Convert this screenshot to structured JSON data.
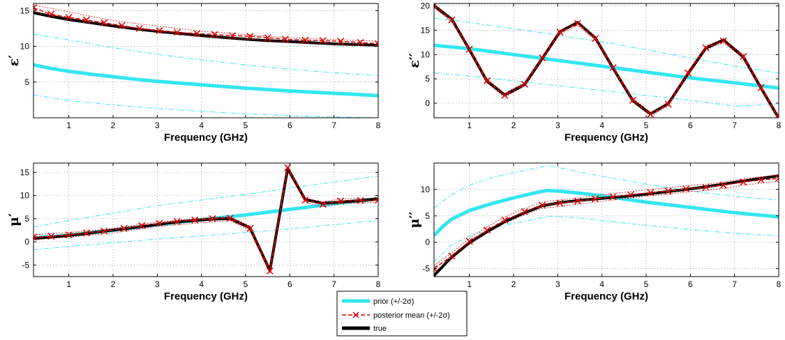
{
  "chart_data": [
    {
      "type": "line",
      "ylabel": "ε′",
      "xlabel": "Frequency (GHz)",
      "xlim": [
        0.2,
        8
      ],
      "ylim": [
        0,
        16
      ],
      "xticks": [
        1,
        2,
        3,
        4,
        5,
        6,
        7,
        8
      ],
      "yticks": [
        5,
        10,
        15
      ],
      "series": [
        {
          "name": "prior",
          "x": [
            0.2,
            0.6,
            1.0,
            1.5,
            2.0,
            2.5,
            3.0,
            3.5,
            4.0,
            4.5,
            5.0,
            5.5,
            6.0,
            6.5,
            7.0,
            7.5,
            8.0
          ],
          "y": [
            7.4,
            6.9,
            6.5,
            6.1,
            5.75,
            5.4,
            5.1,
            4.85,
            4.6,
            4.38,
            4.15,
            3.95,
            3.75,
            3.58,
            3.42,
            3.27,
            3.1
          ]
        },
        {
          "name": "prior +2σ",
          "x": [
            0.2,
            1.0,
            2.0,
            3.0,
            4.0,
            5.0,
            6.0,
            7.0,
            8.0
          ],
          "y": [
            11.7,
            10.9,
            9.8,
            8.9,
            8.1,
            7.4,
            6.8,
            6.3,
            5.9
          ]
        },
        {
          "name": "prior -2σ",
          "x": [
            0.2,
            1.0,
            2.0,
            3.0,
            4.0,
            5.0,
            6.0,
            7.0,
            8.0
          ],
          "y": [
            3.2,
            2.4,
            1.8,
            1.3,
            0.9,
            0.55,
            0.3,
            0.1,
            0.0
          ]
        },
        {
          "name": "posterior mean",
          "x": [
            0.2,
            0.6,
            1.0,
            1.4,
            1.8,
            2.2,
            2.6,
            3.05,
            3.45,
            3.9,
            4.3,
            4.7,
            5.1,
            5.5,
            5.9,
            6.35,
            6.75,
            7.15,
            7.6,
            8.0
          ],
          "y": [
            15.4,
            14.5,
            14.05,
            13.7,
            13.3,
            12.9,
            12.5,
            12.2,
            11.95,
            11.8,
            11.65,
            11.5,
            11.4,
            11.2,
            11.0,
            10.85,
            10.8,
            10.7,
            10.55,
            10.35
          ]
        },
        {
          "name": "posterior +2σ",
          "x": [
            0.2,
            2.0,
            4.0,
            6.0,
            8.0
          ],
          "y": [
            15.8,
            13.6,
            12.1,
            11.2,
            10.7
          ]
        },
        {
          "name": "posterior -2σ",
          "x": [
            0.2,
            2.0,
            4.0,
            6.0,
            8.0
          ],
          "y": [
            14.9,
            12.9,
            11.4,
            10.6,
            10.1
          ]
        },
        {
          "name": "true",
          "x": [
            0.2,
            0.6,
            1.0,
            1.5,
            2.0,
            2.5,
            3.0,
            3.5,
            4.0,
            4.5,
            5.0,
            5.5,
            6.0,
            6.5,
            7.0,
            7.5,
            8.0
          ],
          "y": [
            14.7,
            14.2,
            13.75,
            13.3,
            12.85,
            12.45,
            12.1,
            11.8,
            11.5,
            11.25,
            11.0,
            10.8,
            10.65,
            10.5,
            10.35,
            10.25,
            10.15
          ]
        }
      ]
    },
    {
      "type": "line",
      "ylabel": "ε′′",
      "xlabel": "Frequency (GHz)",
      "xlim": [
        0.2,
        8
      ],
      "ylim": [
        -3,
        20.5
      ],
      "xticks": [
        1,
        2,
        3,
        4,
        5,
        6,
        7,
        8
      ],
      "yticks": [
        0,
        5,
        10,
        15,
        20
      ],
      "series": [
        {
          "name": "prior",
          "x": [
            0.2,
            1.0,
            2.0,
            3.0,
            4.0,
            5.0,
            6.0,
            7.0,
            8.0
          ],
          "y": [
            11.9,
            11.2,
            10.0,
            8.8,
            7.6,
            6.4,
            5.2,
            4.2,
            3.1
          ]
        },
        {
          "name": "prior +2σ",
          "x": [
            0.2,
            1.0,
            2.0,
            3.0,
            4.0,
            5.0,
            6.0,
            7.0,
            8.0
          ],
          "y": [
            17.5,
            16.6,
            15.3,
            14.0,
            12.6,
            11.0,
            9.3,
            7.6,
            6.2
          ]
        },
        {
          "name": "prior -2σ",
          "x": [
            0.2,
            1.0,
            2.0,
            3.0,
            4.0,
            5.0,
            6.0,
            7.0,
            8.0
          ],
          "y": [
            6.2,
            5.6,
            4.6,
            3.6,
            2.6,
            1.6,
            0.6,
            -0.6,
            -0.2
          ]
        },
        {
          "name": "posterior mean",
          "x": [
            0.2,
            0.6,
            1.0,
            1.4,
            1.8,
            2.25,
            2.65,
            3.05,
            3.45,
            3.85,
            4.25,
            4.7,
            5.1,
            5.5,
            5.95,
            6.35,
            6.75,
            7.2,
            7.6,
            8.0
          ],
          "y": [
            20.1,
            17.1,
            11.1,
            4.6,
            1.6,
            3.9,
            9.3,
            14.6,
            16.4,
            13.3,
            7.3,
            0.6,
            -2.3,
            -0.2,
            6.2,
            11.4,
            12.8,
            9.6,
            3.2,
            -3.0
          ]
        },
        {
          "name": "posterior +2σ",
          "x": [
            0.2,
            0.6,
            1.0,
            1.4,
            1.8,
            2.25,
            2.65,
            3.05,
            3.45,
            3.85,
            4.25,
            4.7,
            5.1,
            5.5,
            5.95,
            6.35,
            6.75,
            7.2,
            7.6,
            8.0
          ],
          "y": [
            20.5,
            17.5,
            11.5,
            5.0,
            2.0,
            4.3,
            9.7,
            15.0,
            16.8,
            13.7,
            7.7,
            1.0,
            -1.9,
            0.2,
            6.6,
            11.8,
            13.2,
            10.0,
            3.6,
            -2.6
          ]
        },
        {
          "name": "posterior -2σ",
          "x": [
            0.2,
            0.6,
            1.0,
            1.4,
            1.8,
            2.25,
            2.65,
            3.05,
            3.45,
            3.85,
            4.25,
            4.7,
            5.1,
            5.5,
            5.95,
            6.35,
            6.75,
            7.2,
            7.6,
            8.0
          ],
          "y": [
            19.7,
            16.7,
            10.7,
            4.2,
            1.2,
            3.5,
            8.9,
            14.2,
            16.0,
            12.9,
            6.9,
            0.2,
            -2.7,
            -0.6,
            5.8,
            11.0,
            12.4,
            9.2,
            2.8,
            -3.4
          ]
        },
        {
          "name": "true",
          "x": [
            0.2,
            0.6,
            1.0,
            1.4,
            1.8,
            2.25,
            2.65,
            3.05,
            3.45,
            3.85,
            4.25,
            4.7,
            5.1,
            5.5,
            5.95,
            6.35,
            6.75,
            7.2,
            7.6,
            8.0
          ],
          "y": [
            20.0,
            17.3,
            11.0,
            4.5,
            1.7,
            3.8,
            9.2,
            14.7,
            16.6,
            13.4,
            7.2,
            0.5,
            -2.2,
            -0.1,
            6.1,
            11.3,
            13.0,
            9.5,
            3.1,
            -3.1
          ]
        }
      ]
    },
    {
      "type": "line",
      "ylabel": "μ′",
      "xlabel": "Frequency (GHz)",
      "xlim": [
        0.2,
        8
      ],
      "ylim": [
        -7.5,
        17
      ],
      "xticks": [
        1,
        2,
        3,
        4,
        5,
        6,
        7,
        8
      ],
      "yticks": [
        -5,
        0,
        5,
        10,
        15
      ],
      "series": [
        {
          "name": "prior",
          "x": [
            0.2,
            1.0,
            2.0,
            3.0,
            4.0,
            4.5,
            5.0,
            6.0,
            7.0,
            8.0
          ],
          "y": [
            0.8,
            1.4,
            2.5,
            3.7,
            4.8,
            5.3,
            5.8,
            7.0,
            8.2,
            9.3
          ]
        },
        {
          "name": "prior +2σ",
          "x": [
            0.2,
            1.0,
            2.0,
            3.0,
            4.0,
            5.0,
            6.0,
            7.0,
            8.0
          ],
          "y": [
            3.2,
            4.6,
            6.2,
            7.8,
            9.0,
            10.2,
            11.6,
            12.9,
            14.2
          ]
        },
        {
          "name": "prior -2σ",
          "x": [
            0.2,
            1.0,
            2.0,
            3.0,
            4.0,
            5.0,
            6.0,
            7.0,
            8.0
          ],
          "y": [
            -1.7,
            -1.0,
            -0.2,
            0.6,
            1.3,
            2.0,
            2.8,
            3.7,
            4.6
          ]
        },
        {
          "name": "posterior mean",
          "x": [
            0.2,
            0.6,
            1.0,
            1.4,
            1.8,
            2.25,
            2.65,
            3.05,
            3.45,
            3.85,
            4.25,
            4.65,
            5.1,
            5.55,
            5.95,
            6.35,
            6.75,
            7.15,
            7.6,
            8.0
          ],
          "y": [
            1.0,
            1.2,
            1.5,
            1.9,
            2.3,
            2.9,
            3.5,
            4.0,
            4.4,
            4.7,
            5.0,
            5.1,
            2.9,
            -6.3,
            16.0,
            9.0,
            8.1,
            8.8,
            8.9,
            9.0
          ]
        },
        {
          "name": "posterior +2σ",
          "x": [
            0.2,
            1.0,
            2.0,
            3.0,
            4.0,
            4.65,
            5.1,
            5.55,
            5.95,
            6.35,
            6.75,
            7.15,
            7.6,
            8.0
          ],
          "y": [
            1.5,
            2.0,
            2.9,
            4.3,
            5.1,
            5.5,
            3.4,
            -5.8,
            16.5,
            9.5,
            8.6,
            9.3,
            9.4,
            9.5
          ]
        },
        {
          "name": "posterior -2σ",
          "x": [
            0.2,
            1.0,
            2.0,
            3.0,
            4.0,
            4.65,
            5.1,
            5.55,
            5.95,
            6.35,
            6.75,
            7.15,
            7.6,
            8.0
          ],
          "y": [
            0.5,
            1.0,
            1.9,
            3.3,
            4.1,
            4.6,
            2.4,
            -6.8,
            15.5,
            8.5,
            7.6,
            8.3,
            8.4,
            8.5
          ]
        },
        {
          "name": "true",
          "x": [
            0.2,
            0.6,
            1.0,
            1.4,
            1.8,
            2.25,
            2.65,
            3.05,
            3.45,
            3.85,
            4.25,
            4.65,
            5.1,
            5.55,
            5.95,
            6.35,
            6.75,
            7.15,
            7.6,
            8.0
          ],
          "y": [
            0.7,
            1.0,
            1.4,
            1.8,
            2.3,
            2.8,
            3.3,
            3.8,
            4.3,
            4.6,
            4.9,
            5.0,
            3.0,
            -6.2,
            15.8,
            9.1,
            8.3,
            8.6,
            8.9,
            9.2
          ]
        }
      ]
    },
    {
      "type": "line",
      "ylabel": "μ′′",
      "xlabel": "Frequency (GHz)",
      "xlim": [
        0.2,
        8
      ],
      "ylim": [
        -6.5,
        15
      ],
      "xticks": [
        1,
        2,
        3,
        4,
        5,
        6,
        7,
        8
      ],
      "yticks": [
        -5,
        0,
        5,
        10
      ],
      "series": [
        {
          "name": "prior",
          "x": [
            0.2,
            0.4,
            0.6,
            1.0,
            1.5,
            2.0,
            2.4,
            2.75,
            3.0,
            3.5,
            4.0,
            4.5,
            5.0,
            5.5,
            6.0,
            6.5,
            7.0,
            7.5,
            8.0
          ],
          "y": [
            1.3,
            3.0,
            4.4,
            6.0,
            7.3,
            8.4,
            9.2,
            9.8,
            9.7,
            9.3,
            8.8,
            8.2,
            7.6,
            7.1,
            6.6,
            6.1,
            5.6,
            5.2,
            4.8
          ]
        },
        {
          "name": "prior +2σ",
          "x": [
            0.2,
            0.6,
            1.0,
            1.5,
            2.0,
            2.5,
            2.75,
            3.0,
            3.5,
            4.0,
            5.0,
            6.0,
            7.0,
            8.0
          ],
          "y": [
            6.5,
            9.0,
            10.8,
            12.2,
            13.2,
            14.0,
            14.5,
            14.2,
            13.3,
            12.5,
            11.0,
            9.7,
            8.7,
            8.0
          ]
        },
        {
          "name": "prior -2σ",
          "x": [
            0.2,
            0.6,
            1.0,
            1.5,
            2.0,
            2.5,
            2.75,
            3.0,
            3.5,
            4.0,
            5.0,
            6.0,
            7.0,
            8.0
          ],
          "y": [
            -3.7,
            -0.5,
            1.2,
            2.6,
            3.6,
            4.4,
            4.9,
            4.9,
            4.6,
            4.1,
            3.2,
            2.4,
            1.7,
            1.2
          ]
        },
        {
          "name": "posterior mean",
          "x": [
            0.2,
            0.6,
            1.0,
            1.4,
            1.8,
            2.25,
            2.65,
            3.05,
            3.45,
            3.85,
            4.25,
            4.65,
            5.1,
            5.5,
            5.9,
            6.35,
            6.75,
            7.2,
            7.6,
            8.0
          ],
          "y": [
            -5.0,
            -2.6,
            0.2,
            2.3,
            4.2,
            5.8,
            7.0,
            7.4,
            7.8,
            8.2,
            8.6,
            9.0,
            9.4,
            9.7,
            10.1,
            10.4,
            10.8,
            11.4,
            11.8,
            12.1
          ]
        },
        {
          "name": "posterior +2σ",
          "x": [
            0.2,
            0.6,
            1.0,
            1.4,
            1.8,
            2.25,
            2.65,
            3.05,
            3.45,
            3.85,
            4.25,
            4.65,
            5.1,
            5.5,
            5.9,
            6.35,
            6.75,
            7.2,
            7.6,
            8.0
          ],
          "y": [
            -4.4,
            -2.0,
            0.8,
            2.9,
            4.8,
            6.4,
            7.6,
            8.0,
            8.4,
            8.8,
            9.2,
            9.6,
            10.0,
            10.3,
            10.7,
            11.0,
            11.4,
            12.0,
            12.4,
            12.7
          ]
        },
        {
          "name": "posterior -2σ",
          "x": [
            0.2,
            0.6,
            1.0,
            1.4,
            1.8,
            2.25,
            2.65,
            3.05,
            3.45,
            3.85,
            4.25,
            4.65,
            5.1,
            5.5,
            5.9,
            6.35,
            6.75,
            7.2,
            7.6,
            8.0
          ],
          "y": [
            -5.6,
            -3.2,
            -0.4,
            1.7,
            3.6,
            5.2,
            6.4,
            6.8,
            7.2,
            7.6,
            8.0,
            8.4,
            8.8,
            9.1,
            9.5,
            9.8,
            10.2,
            10.8,
            11.2,
            11.5
          ]
        },
        {
          "name": "true",
          "x": [
            0.2,
            0.6,
            1.0,
            1.4,
            1.8,
            2.25,
            2.65,
            3.05,
            3.45,
            3.85,
            4.25,
            4.65,
            5.1,
            5.5,
            5.9,
            6.35,
            6.75,
            7.2,
            7.6,
            8.0
          ],
          "y": [
            -6.3,
            -2.8,
            -0.1,
            2.0,
            3.9,
            5.6,
            6.9,
            7.5,
            7.9,
            8.2,
            8.5,
            8.8,
            9.2,
            9.6,
            10.0,
            10.5,
            11.0,
            11.6,
            12.1,
            12.6
          ]
        }
      ]
    }
  ],
  "legend": {
    "entries": [
      {
        "label": "prior (+/-2σ)",
        "color": "#33e6f0",
        "style": "thick-solid"
      },
      {
        "label": "posterior mean (+/-2σ)",
        "color": "#e00000",
        "style": "dashed-cross"
      },
      {
        "label": "true",
        "color": "#000000",
        "style": "thick-solid"
      }
    ]
  },
  "colors": {
    "prior": "#33e6f0",
    "posterior": "#e00000",
    "true": "#000000",
    "grid": "#808080"
  }
}
